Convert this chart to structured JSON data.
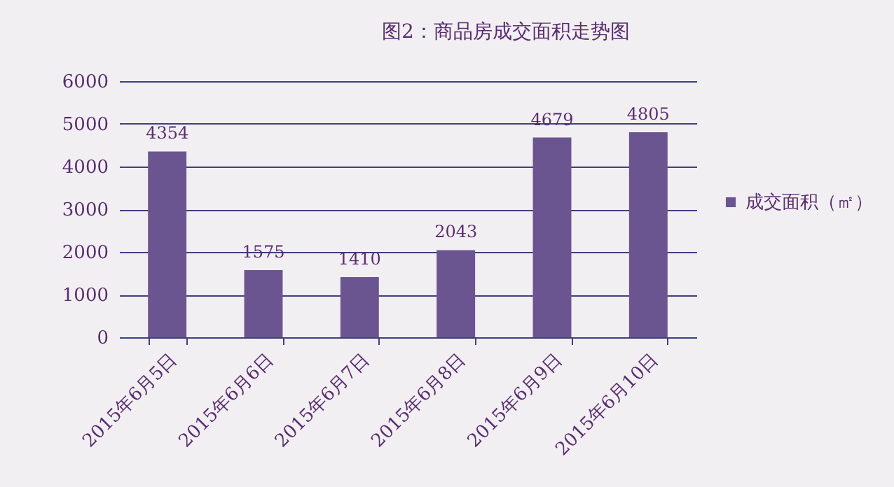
{
  "chart_data": {
    "type": "bar",
    "title": "图2：商品房成交面积走势图",
    "categories": [
      "2015年6月5日",
      "2015年6月6日",
      "2015年6月7日",
      "2015年6月8日",
      "2015年6月9日",
      "2015年6月10日"
    ],
    "series": [
      {
        "name": "成交面积（㎡）",
        "color": "#6b5591",
        "values": [
          4354,
          1575,
          1410,
          2043,
          4679,
          4805
        ]
      }
    ],
    "ylim": [
      0,
      6000
    ],
    "yticks": [
      0,
      1000,
      2000,
      3000,
      4000,
      5000,
      6000
    ],
    "grid": "y",
    "legend": "right",
    "data_labels": true
  }
}
